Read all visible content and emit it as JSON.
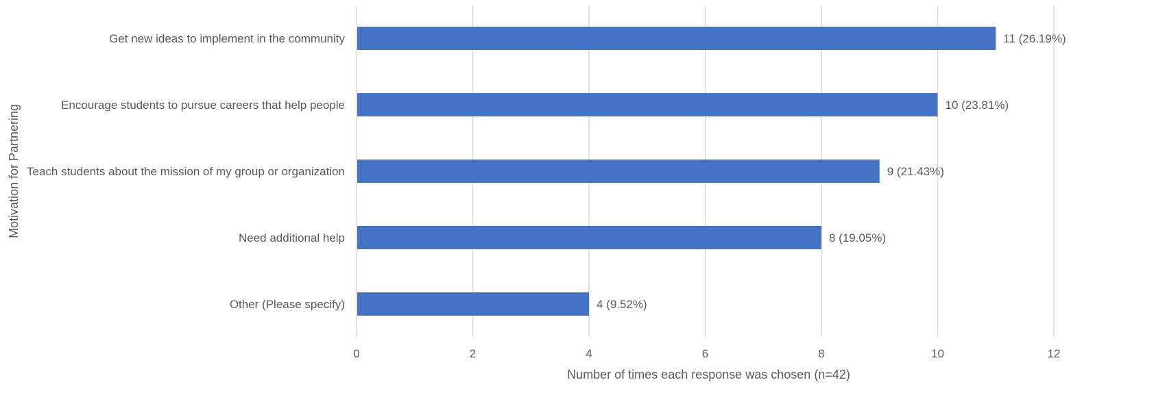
{
  "chart_data": {
    "type": "bar",
    "orientation": "horizontal",
    "categories": [
      "Get new ideas to implement in the community",
      "Encourage students to pursue careers that help people",
      "Teach students about the mission of my group or organization",
      "Need additional help",
      "Other (Please specify)"
    ],
    "values": [
      11,
      10,
      9,
      8,
      4
    ],
    "data_labels": [
      "11 (26.19%)",
      "10 (23.81%)",
      "9 (21.43%)",
      "8 (19.05%)",
      "4 (9.52%)"
    ],
    "title": "",
    "xlabel": "Number of times each response was chosen (n=42)",
    "ylabel": "Motivation for Partnering",
    "xlim": [
      0,
      12
    ],
    "xticks": [
      0,
      2,
      4,
      6,
      8,
      10,
      12
    ],
    "grid": "vertical",
    "legend": "none",
    "bar_color": "#4472C4"
  }
}
